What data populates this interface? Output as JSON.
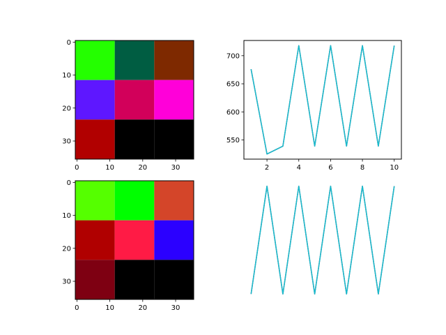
{
  "chart_data": [
    {
      "type": "heatmap",
      "panel": "top-left",
      "xlim": [
        -0.5,
        35.5
      ],
      "ylim": [
        35.5,
        -0.5
      ],
      "xticks": [
        0,
        10,
        20,
        30
      ],
      "yticks": [
        0,
        10,
        20,
        30
      ],
      "cell_size": 12,
      "cell_colors": [
        [
          "#24ff00",
          "#005d42",
          "#7e2900"
        ],
        [
          "#5e17ff",
          "#d2005a",
          "#ff00d9"
        ],
        [
          "#b10000",
          "#000000",
          "#000000"
        ]
      ],
      "title": "",
      "xlabel": "",
      "ylabel": ""
    },
    {
      "type": "line",
      "panel": "top-right",
      "x": [
        1,
        2,
        3,
        4,
        5,
        6,
        7,
        8,
        9,
        10
      ],
      "series": [
        {
          "values": [
            676,
            525,
            539,
            718,
            539,
            718,
            539,
            718,
            539,
            718
          ],
          "color": "#e377c2"
        },
        {
          "values": [
            676,
            525,
            539,
            718,
            539,
            718,
            539,
            718,
            539,
            718
          ],
          "color": "#7f7f7f"
        },
        {
          "values": [
            676,
            525,
            539,
            718,
            539,
            718,
            539,
            718,
            539,
            718
          ],
          "color": "#17becf"
        }
      ],
      "xlim": [
        0.55,
        10.45
      ],
      "ylim": [
        515.9,
        727.1
      ],
      "xticks": [
        2,
        4,
        6,
        8,
        10
      ],
      "yticks": [
        550,
        600,
        650,
        700
      ],
      "title": "",
      "xlabel": "",
      "ylabel": ""
    },
    {
      "type": "heatmap",
      "panel": "bottom-left",
      "xlim": [
        -0.5,
        35.5
      ],
      "ylim": [
        35.5,
        -0.5
      ],
      "xticks": [
        0,
        10,
        20,
        30
      ],
      "yticks": [
        0,
        10,
        20,
        30
      ],
      "cell_size": 12,
      "cell_colors": [
        [
          "#55ff00",
          "#00ff00",
          "#d44529"
        ],
        [
          "#b00000",
          "#ff1b45",
          "#2b00ff"
        ],
        [
          "#7e0012",
          "#000000",
          "#000000"
        ]
      ],
      "title": "",
      "xlabel": "",
      "ylabel": ""
    },
    {
      "type": "line",
      "panel": "bottom-right",
      "x": [
        1,
        2,
        3,
        4,
        5,
        6,
        7,
        8,
        9,
        10
      ],
      "series": [
        {
          "values": [
            539,
            718,
            539,
            718,
            539,
            718,
            539,
            718,
            539,
            718
          ],
          "color": "#e377c2"
        },
        {
          "values": [
            539,
            718,
            539,
            718,
            539,
            718,
            539,
            718,
            539,
            718
          ],
          "color": "#7f7f7f"
        },
        {
          "values": [
            539,
            718,
            539,
            718,
            539,
            718,
            539,
            718,
            539,
            718
          ],
          "color": "#17becf"
        }
      ],
      "xlim": [
        0.55,
        10.45
      ],
      "ylim": [
        530.05,
        726.95
      ],
      "axis_off": true,
      "title": "",
      "xlabel": "",
      "ylabel": ""
    }
  ]
}
